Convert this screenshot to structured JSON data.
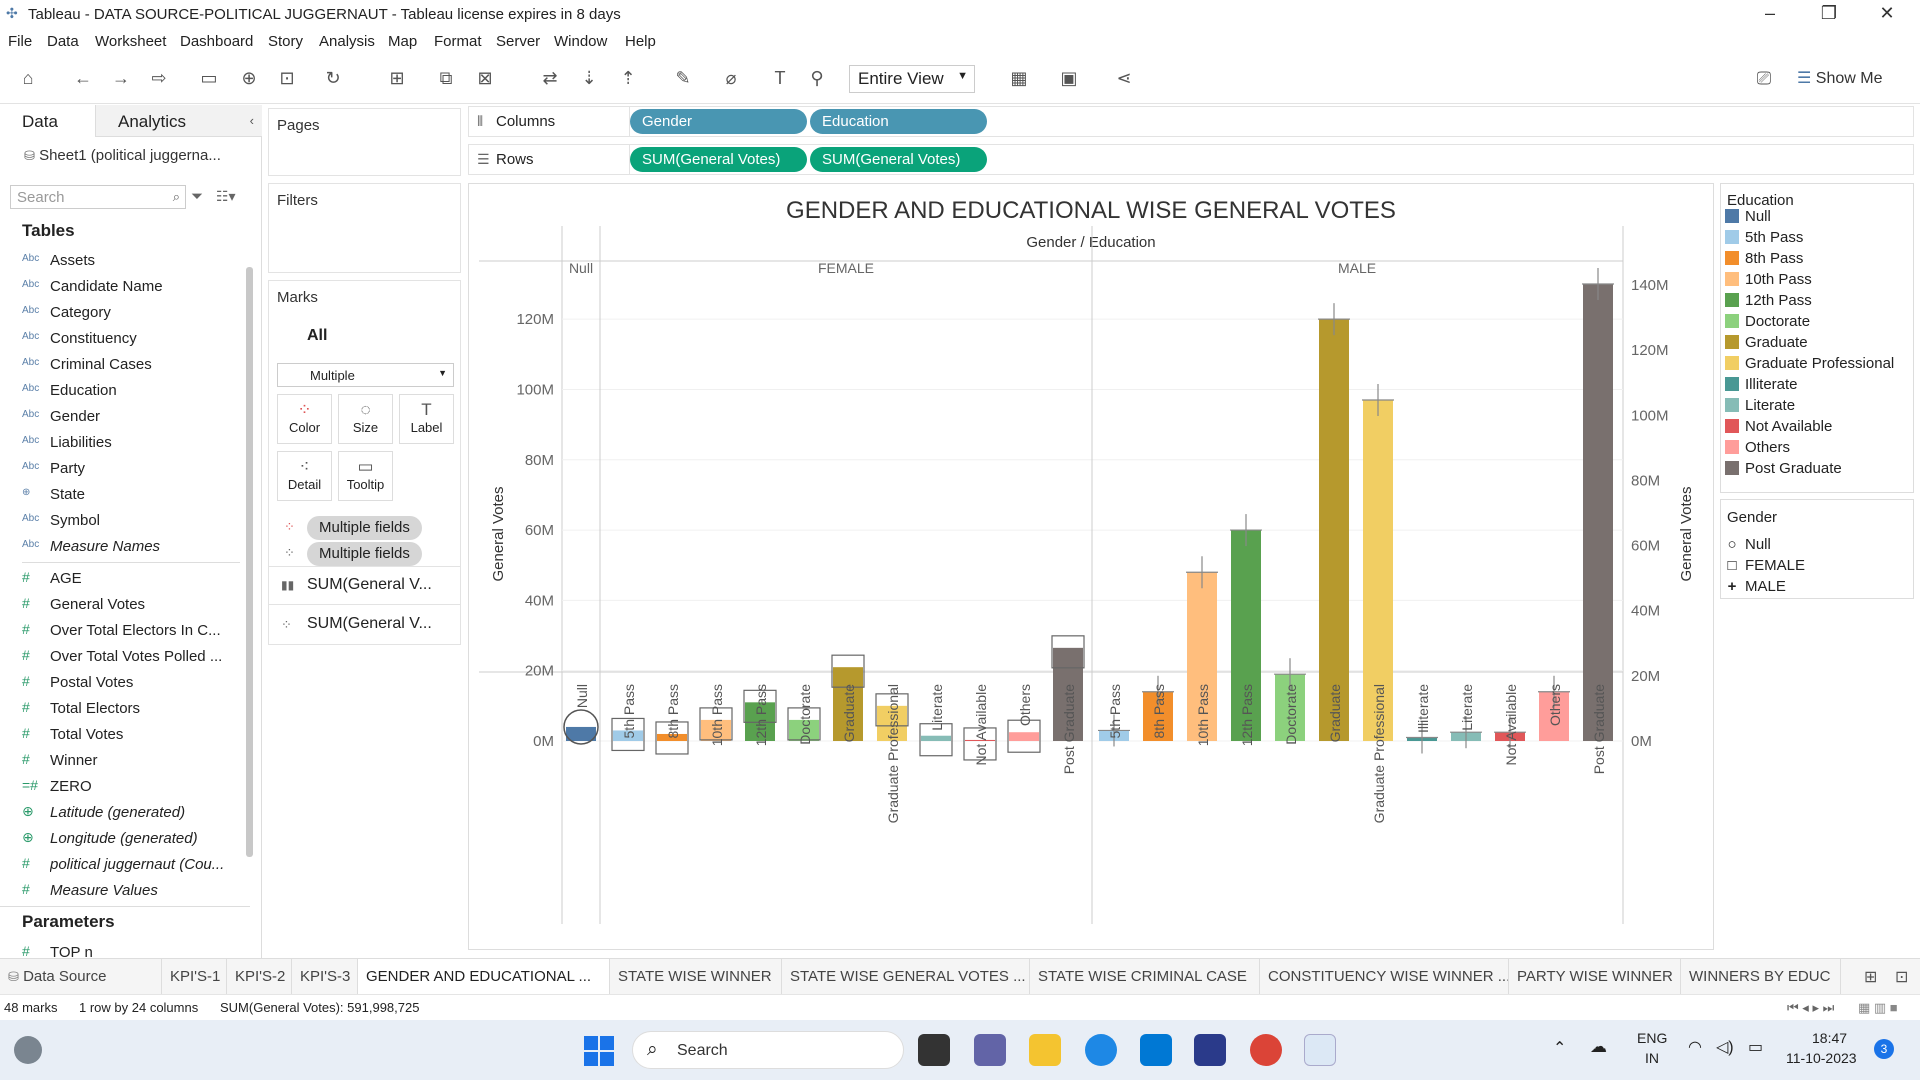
{
  "window": {
    "title": "Tableau - DATA SOURCE-POLITICAL JUGGERNAUT - Tableau license expires in 8 days",
    "minimize": "–",
    "restore": "❐",
    "close": "✕"
  },
  "menu": [
    "File",
    "Data",
    "Worksheet",
    "Dashboard",
    "Story",
    "Analysis",
    "Map",
    "Format",
    "Server",
    "Window",
    "Help"
  ],
  "toolbar": {
    "view_mode": "Entire View",
    "show_me": "Show Me"
  },
  "left_pane": {
    "tabs": [
      "Data",
      "Analytics"
    ],
    "datasource": "Sheet1 (political juggerna...",
    "search_placeholder": "Search",
    "tables_header": "Tables",
    "dimensions": [
      {
        "label": "Assets",
        "icon": "Abc"
      },
      {
        "label": "Candidate Name",
        "icon": "Abc"
      },
      {
        "label": "Category",
        "icon": "Abc"
      },
      {
        "label": "Constituency",
        "icon": "Abc"
      },
      {
        "label": "Criminal Cases",
        "icon": "Abc"
      },
      {
        "label": "Education",
        "icon": "Abc"
      },
      {
        "label": "Gender",
        "icon": "Abc"
      },
      {
        "label": "Liabilities",
        "icon": "Abc"
      },
      {
        "label": "Party",
        "icon": "Abc"
      },
      {
        "label": "State",
        "icon": "⊕"
      },
      {
        "label": "Symbol",
        "icon": "Abc"
      },
      {
        "label": "Measure Names",
        "icon": "Abc"
      }
    ],
    "measures": [
      {
        "label": "AGE",
        "icon": "#"
      },
      {
        "label": "General Votes",
        "icon": "#"
      },
      {
        "label": "Over Total Electors  In C...",
        "icon": "#"
      },
      {
        "label": "Over Total Votes Polled  ...",
        "icon": "#"
      },
      {
        "label": "Postal Votes",
        "icon": "#"
      },
      {
        "label": "Total Electors",
        "icon": "#"
      },
      {
        "label": "Total Votes",
        "icon": "#"
      },
      {
        "label": "Winner",
        "icon": "#"
      },
      {
        "label": "ZERO",
        "icon": "=#"
      },
      {
        "label": "Latitude (generated)",
        "icon": "⊕"
      },
      {
        "label": "Longitude (generated)",
        "icon": "⊕"
      },
      {
        "label": "political juggernaut (Cou...",
        "icon": "#"
      },
      {
        "label": "Measure Values",
        "icon": "#"
      }
    ],
    "parameters_header": "Parameters",
    "parameters": [
      {
        "label": "TOP n",
        "icon": "#"
      }
    ]
  },
  "cards": {
    "pages": "Pages",
    "filters": "Filters",
    "marks": "Marks",
    "marks_all": "All",
    "mark_type": "Multiple",
    "mark_buttons": [
      "Color",
      "Size",
      "Label",
      "Detail",
      "Tooltip"
    ],
    "mark_fields": [
      "Multiple fields",
      "Multiple fields"
    ],
    "mark_measures": [
      "SUM(General V...",
      "SUM(General V..."
    ]
  },
  "shelves": {
    "columns_label": "Columns",
    "rows_label": "Rows",
    "columns": [
      "Gender",
      "Education"
    ],
    "rows": [
      "SUM(General Votes)",
      "SUM(General Votes)"
    ]
  },
  "chart_data": {
    "type": "bar",
    "title": "GENDER AND EDUCATIONAL WISE GENERAL VOTES",
    "header": "Gender / Education",
    "ylabel": "General Votes",
    "ylim": [
      0,
      130000000
    ],
    "left_ticks": [
      "0M",
      "20M",
      "40M",
      "60M",
      "80M",
      "100M",
      "120M"
    ],
    "right_ticks": [
      "0M",
      "20M",
      "40M",
      "60M",
      "80M",
      "100M",
      "120M",
      "140M"
    ],
    "groups": [
      {
        "name": "Null",
        "categories": [
          "Null"
        ]
      },
      {
        "name": "FEMALE",
        "categories": [
          "5th Pass",
          "8th Pass",
          "10th Pass",
          "12th Pass",
          "Doctorate",
          "Graduate",
          "Graduate Professional",
          "Literate",
          "Not Available",
          "Others",
          "Post Graduate"
        ]
      },
      {
        "name": "MALE",
        "categories": [
          "5th Pass",
          "8th Pass",
          "10th Pass",
          "12th Pass",
          "Doctorate",
          "Graduate",
          "Graduate Professional",
          "Illiterate",
          "Literate",
          "Not Available",
          "Others",
          "Post Graduate"
        ]
      }
    ],
    "values": {
      "Null": [
        4000000
      ],
      "FEMALE": [
        3000000,
        2000000,
        6000000,
        11000000,
        6000000,
        21000000,
        10000000,
        1500000,
        300000,
        2500000,
        26500000
      ],
      "MALE": [
        3000000,
        14000000,
        48000000,
        60000000,
        19000000,
        120000000,
        97000000,
        1000000,
        2500000,
        2500000,
        14000000,
        130000000
      ]
    }
  },
  "legend_education": {
    "title": "Education",
    "items": [
      {
        "label": "Null",
        "color": "#4e79a7"
      },
      {
        "label": "5th Pass",
        "color": "#a0cbe8"
      },
      {
        "label": "8th Pass",
        "color": "#f28e2b"
      },
      {
        "label": "10th Pass",
        "color": "#ffbe7d"
      },
      {
        "label": "12th Pass",
        "color": "#59a14f"
      },
      {
        "label": "Doctorate",
        "color": "#8cd17d"
      },
      {
        "label": "Graduate",
        "color": "#b6992d"
      },
      {
        "label": "Graduate Professional",
        "color": "#f1ce63"
      },
      {
        "label": "Illiterate",
        "color": "#499894"
      },
      {
        "label": "Literate",
        "color": "#86bcb6"
      },
      {
        "label": "Not Available",
        "color": "#e15759"
      },
      {
        "label": "Others",
        "color": "#ff9d9a"
      },
      {
        "label": "Post Graduate",
        "color": "#79706e"
      }
    ]
  },
  "legend_gender": {
    "title": "Gender",
    "items": [
      {
        "label": "Null",
        "shape": "○"
      },
      {
        "label": "FEMALE",
        "shape": "□"
      },
      {
        "label": "MALE",
        "shape": "+"
      }
    ]
  },
  "sheet_tabs": {
    "datasource": "Data Source",
    "tabs": [
      "KPI'S-1",
      "KPI'S-2",
      "KPI'S-3",
      "GENDER AND EDUCATIONAL ...",
      "STATE WISE WINNER",
      "STATE WISE GENERAL VOTES ...",
      "STATE WISE CRIMINAL CASE",
      "CONSTITUENCY WISE WINNER ...",
      "PARTY WISE WINNER",
      "WINNERS BY EDUC"
    ],
    "active": 3
  },
  "status": {
    "marks": "48 marks",
    "dims": "1 row by 24 columns",
    "sum": "SUM(General Votes): 591,998,725"
  },
  "taskbar": {
    "search": "Search",
    "lang1": "ENG",
    "lang2": "IN",
    "time": "18:47",
    "date": "11-10-2023",
    "badge": "3"
  }
}
